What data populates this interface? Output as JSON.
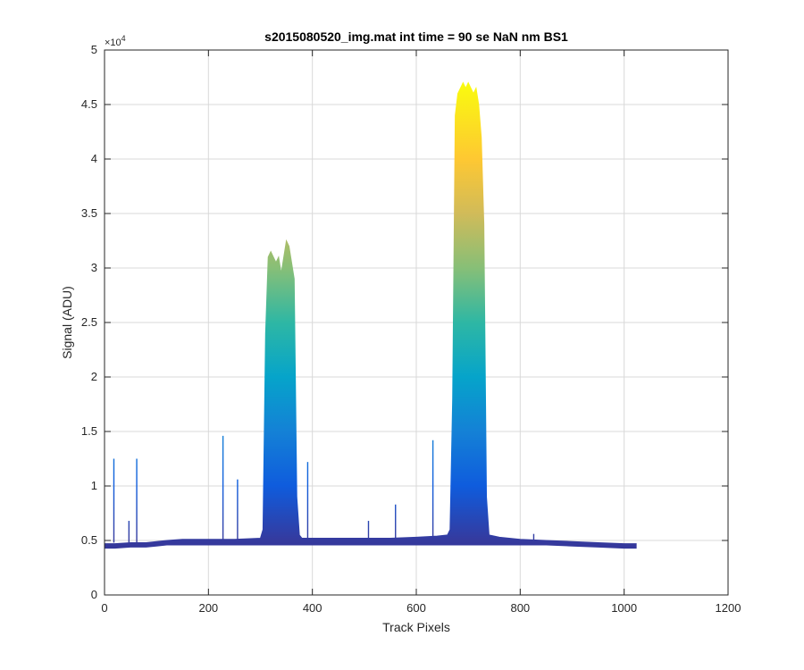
{
  "chart_data": {
    "type": "area",
    "title": "s2015080520_img.mat int time = 90 se  NaN nm BS1",
    "xlabel": "Track Pixels",
    "ylabel": "Signal (ADU)",
    "xlim": [
      0,
      1200
    ],
    "ylim": [
      0,
      5
    ],
    "y_multiplier": "×10",
    "y_multiplier_exponent": "4",
    "x_ticks": [
      "0",
      "200",
      "400",
      "600",
      "800",
      "1000",
      "1200"
    ],
    "y_ticks": [
      "0",
      "0.5",
      "1",
      "1.5",
      "2",
      "2.5",
      "3",
      "3.5",
      "4",
      "4.5",
      "5"
    ],
    "grid": true,
    "colormap": "parula",
    "series": [
      {
        "x": [
          0,
          20,
          50,
          80,
          100,
          120,
          150,
          200,
          250,
          300,
          305,
          310,
          315,
          320,
          325,
          330,
          335,
          340,
          345,
          350,
          355,
          360,
          365,
          370,
          375,
          380,
          400,
          450,
          500,
          550,
          600,
          640,
          660,
          665,
          670,
          675,
          680,
          685,
          690,
          695,
          700,
          705,
          710,
          715,
          720,
          725,
          730,
          735,
          740,
          760,
          800,
          850,
          900,
          950,
          1000,
          1024
        ],
        "values": [
          0.47,
          0.47,
          0.48,
          0.48,
          0.49,
          0.5,
          0.51,
          0.51,
          0.51,
          0.52,
          0.6,
          2.4,
          3.1,
          3.15,
          3.1,
          3.05,
          3.1,
          2.95,
          3.1,
          3.25,
          3.2,
          3.05,
          2.9,
          0.9,
          0.55,
          0.52,
          0.52,
          0.52,
          0.52,
          0.52,
          0.53,
          0.54,
          0.55,
          0.6,
          1.8,
          4.4,
          4.6,
          4.65,
          4.7,
          4.65,
          4.7,
          4.65,
          4.6,
          4.65,
          4.5,
          4.2,
          3.4,
          0.9,
          0.55,
          0.53,
          0.51,
          0.5,
          0.49,
          0.48,
          0.47,
          0.47
        ]
      }
    ],
    "spikes": [
      {
        "x": 18,
        "value": 1.25
      },
      {
        "x": 47,
        "value": 0.68
      },
      {
        "x": 62,
        "value": 1.25
      },
      {
        "x": 228,
        "value": 1.46
      },
      {
        "x": 256,
        "value": 1.06
      },
      {
        "x": 391,
        "value": 1.22
      },
      {
        "x": 508,
        "value": 0.68
      },
      {
        "x": 560,
        "value": 0.83
      },
      {
        "x": 632,
        "value": 1.42
      },
      {
        "x": 826,
        "value": 0.56
      }
    ]
  }
}
